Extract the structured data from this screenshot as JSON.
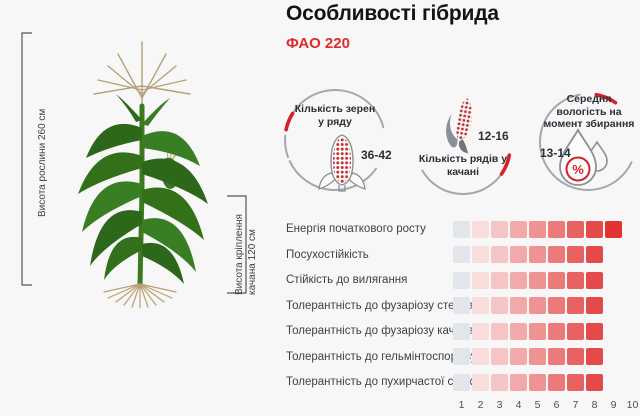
{
  "header": {
    "title": "Особливості гібрида",
    "subtitle": "ФАО 220"
  },
  "measurements": {
    "plant_height": "Висота рослини 260 см",
    "ear_height_line1": "Висота кріплення",
    "ear_height_line2": "качана 120 см"
  },
  "stats": [
    {
      "icon": "corn-cob-icon",
      "line1": "Кількість зерен",
      "line2": "у ряду",
      "value": "36-42"
    },
    {
      "icon": "corn-ear-icon",
      "line1": "Кількість рядів у",
      "line2": "качані",
      "value": "12-16"
    },
    {
      "icon": "moisture-drop-icon",
      "line1": "Середня",
      "line2": "вологість на",
      "line3": "момент збирання",
      "value": "13-14"
    }
  ],
  "chart_data": {
    "type": "bar",
    "title": "",
    "xlabel": "",
    "ylabel": "",
    "categories": [
      "Енергія початкового росту",
      "Посухостійкість",
      "Стійкість до вилягання",
      "Толерантність до фузаріозу стебла",
      "Толерантність до фузаріозу качана",
      "Толерантність до гельмінтоспоріозу",
      "Толерантність до пухирчастої сажки"
    ],
    "values": [
      9,
      8,
      8,
      8,
      8,
      8,
      8
    ],
    "scale_min": 1,
    "scale_max": 10,
    "scale_ticks": [
      1,
      2,
      3,
      4,
      5,
      6,
      7,
      8,
      9,
      10
    ],
    "palette": [
      "#e2e5e9",
      "#f9dcdc",
      "#f5c4c4",
      "#f1a9a9",
      "#ee9292",
      "#eb7b7b",
      "#e86262",
      "#e54a4a",
      "#e23232",
      "#df2020"
    ],
    "legend": null,
    "grid": false
  },
  "colors": {
    "accent_red": "#d2232a",
    "subtitle_red": "#e22a2a",
    "arc_gray": "#a3a8ad",
    "square_gray": "#e2e5e9",
    "kernel_red": "#c23434"
  }
}
